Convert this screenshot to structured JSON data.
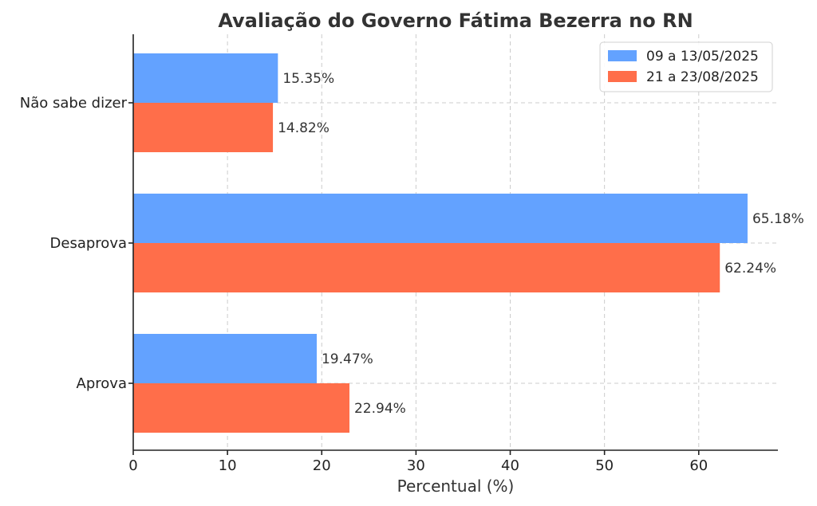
{
  "chart_data": {
    "type": "bar",
    "orientation": "horizontal",
    "title": "Avaliação do Governo Fátima Bezerra no RN",
    "xlabel": "Percentual (%)",
    "ylabel": "",
    "xlim": [
      0,
      68.4
    ],
    "xticks": [
      0,
      10,
      20,
      30,
      40,
      50,
      60
    ],
    "categories": [
      "Aprova",
      "Desaprova",
      "Não sabe dizer"
    ],
    "series": [
      {
        "name": "09 a 13/05/2025",
        "color": "#63a2ff",
        "values": [
          19.47,
          65.18,
          15.35
        ],
        "labels": [
          "19.47%",
          "65.18%",
          "15.35%"
        ]
      },
      {
        "name": "21 a 23/08/2025",
        "color": "#ff6e4a",
        "values": [
          22.94,
          62.24,
          14.82
        ],
        "labels": [
          "22.94%",
          "62.24%",
          "14.82%"
        ]
      }
    ],
    "grid": true,
    "legend_position": "top-right"
  }
}
